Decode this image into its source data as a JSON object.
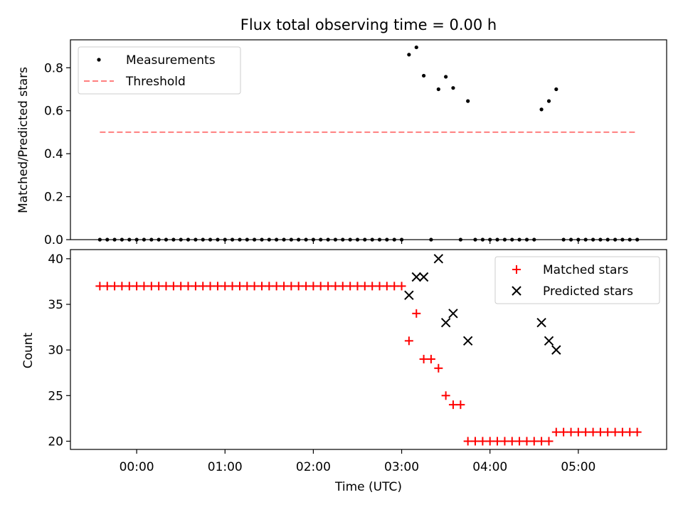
{
  "chart_data": [
    {
      "type": "scatter",
      "title": "Flux total observing time = 0.00 h",
      "xlabel": "",
      "ylabel": "Matched/Predicted stars",
      "x_unit": "hours (UTC)",
      "xlim": [
        -0.75,
        6.0
      ],
      "ylim": [
        0.0,
        0.93
      ],
      "yticks": [
        0.0,
        0.2,
        0.4,
        0.6,
        0.8
      ],
      "ytick_labels": [
        "0.0",
        "0.2",
        "0.4",
        "0.6",
        "0.8"
      ],
      "xticks": [
        0,
        1,
        2,
        3,
        4,
        5
      ],
      "xtick_labels": [],
      "legend_position": "upper left",
      "series": [
        {
          "name": "Measurements",
          "marker": "dot",
          "color": "#000000",
          "x": [
            -0.417,
            -0.333,
            -0.25,
            -0.167,
            -0.083,
            0.0,
            0.083,
            0.167,
            0.25,
            0.333,
            0.417,
            0.5,
            0.583,
            0.667,
            0.75,
            0.833,
            0.917,
            1.0,
            1.083,
            1.167,
            1.25,
            1.333,
            1.417,
            1.5,
            1.583,
            1.667,
            1.75,
            1.833,
            1.917,
            2.0,
            2.083,
            2.167,
            2.25,
            2.333,
            2.417,
            2.5,
            2.583,
            2.667,
            2.75,
            2.833,
            2.917,
            3.0,
            3.083,
            3.167,
            3.25,
            3.333,
            3.417,
            3.5,
            3.583,
            3.667,
            3.75,
            3.833,
            3.917,
            4.0,
            4.083,
            4.167,
            4.25,
            4.333,
            4.417,
            4.5,
            4.583,
            4.667,
            4.75,
            4.833,
            4.917,
            5.0,
            5.083,
            5.167,
            5.25,
            5.333,
            5.417,
            5.5,
            5.583,
            5.667
          ],
          "y": [
            0,
            0,
            0,
            0,
            0,
            0,
            0,
            0,
            0,
            0,
            0,
            0,
            0,
            0,
            0,
            0,
            0,
            0,
            0,
            0,
            0,
            0,
            0,
            0,
            0,
            0,
            0,
            0,
            0,
            0,
            0,
            0,
            0,
            0,
            0,
            0,
            0,
            0,
            0,
            0,
            0,
            0,
            0.861,
            0.895,
            0.763,
            0,
            0.7,
            0.758,
            0.706,
            0,
            0.645,
            0,
            0,
            0,
            0,
            0,
            0,
            0,
            0,
            0,
            0.606,
            0.645,
            0.7,
            0,
            0,
            0,
            0,
            0,
            0,
            0,
            0,
            0,
            0,
            0
          ]
        },
        {
          "name": "Threshold",
          "line": "dashed",
          "color": "#ff7f7f",
          "x": [
            -0.417,
            5.667
          ],
          "y": [
            0.5,
            0.5
          ]
        }
      ]
    },
    {
      "type": "scatter",
      "title": "",
      "xlabel": "Time (UTC)",
      "ylabel": "Count",
      "x_unit": "hours (UTC)",
      "xlim": [
        -0.75,
        6.0
      ],
      "ylim": [
        19.1,
        41.0
      ],
      "yticks": [
        20,
        25,
        30,
        35,
        40
      ],
      "ytick_labels": [
        "20",
        "25",
        "30",
        "35",
        "40"
      ],
      "xticks": [
        0,
        1,
        2,
        3,
        4,
        5
      ],
      "xtick_labels": [
        "00:00",
        "01:00",
        "02:00",
        "03:00",
        "04:00",
        "05:00"
      ],
      "legend_position": "upper right",
      "series": [
        {
          "name": "Matched stars",
          "marker": "plus",
          "color": "#ff0000",
          "x": [
            -0.417,
            -0.333,
            -0.25,
            -0.167,
            -0.083,
            0.0,
            0.083,
            0.167,
            0.25,
            0.333,
            0.417,
            0.5,
            0.583,
            0.667,
            0.75,
            0.833,
            0.917,
            1.0,
            1.083,
            1.167,
            1.25,
            1.333,
            1.417,
            1.5,
            1.583,
            1.667,
            1.75,
            1.833,
            1.917,
            2.0,
            2.083,
            2.167,
            2.25,
            2.333,
            2.417,
            2.5,
            2.583,
            2.667,
            2.75,
            2.833,
            2.917,
            3.0,
            3.083,
            3.167,
            3.25,
            3.333,
            3.417,
            3.5,
            3.583,
            3.667,
            3.75,
            3.833,
            3.917,
            4.0,
            4.083,
            4.167,
            4.25,
            4.333,
            4.417,
            4.5,
            4.583,
            4.667,
            4.75,
            4.833,
            4.917,
            5.0,
            5.083,
            5.167,
            5.25,
            5.333,
            5.417,
            5.5,
            5.583,
            5.667
          ],
          "y": [
            37,
            37,
            37,
            37,
            37,
            37,
            37,
            37,
            37,
            37,
            37,
            37,
            37,
            37,
            37,
            37,
            37,
            37,
            37,
            37,
            37,
            37,
            37,
            37,
            37,
            37,
            37,
            37,
            37,
            37,
            37,
            37,
            37,
            37,
            37,
            37,
            37,
            37,
            37,
            37,
            37,
            37,
            31,
            34,
            29,
            29,
            28,
            25,
            24,
            24,
            20,
            20,
            20,
            20,
            20,
            20,
            20,
            20,
            20,
            20,
            20,
            20,
            21,
            21,
            21,
            21,
            21,
            21,
            21,
            21,
            21,
            21,
            21,
            21
          ]
        },
        {
          "name": "Predicted stars",
          "marker": "x",
          "color": "#000000",
          "x": [
            3.083,
            3.167,
            3.25,
            3.417,
            3.5,
            3.583,
            3.75,
            4.583,
            4.667,
            4.75
          ],
          "y": [
            36,
            38,
            38,
            40,
            33,
            34,
            31,
            33,
            31,
            30
          ]
        }
      ]
    }
  ]
}
